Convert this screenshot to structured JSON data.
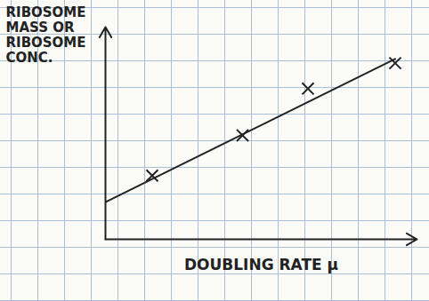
{
  "chart_data": {
    "type": "scatter",
    "x_label": "DOUBLING RATE μ",
    "y_label": "RIBOSOME MASS OR RIBOSOME CONC.",
    "xlim": [
      0,
      10
    ],
    "ylim": [
      0,
      10
    ],
    "xticks": [],
    "yticks": [],
    "grid": false,
    "tick_labels": false,
    "series": [
      {
        "type": "scatter",
        "marker": "x",
        "color": "#222222",
        "x": [
          1.5,
          4.4,
          6.5,
          9.3
        ],
        "values": [
          3.0,
          4.9,
          7.1,
          8.3
        ]
      },
      {
        "type": "line",
        "line_style": "solid",
        "color": "#222222",
        "x": [
          0,
          9.3
        ],
        "values": [
          1.75,
          8.5
        ]
      }
    ]
  }
}
